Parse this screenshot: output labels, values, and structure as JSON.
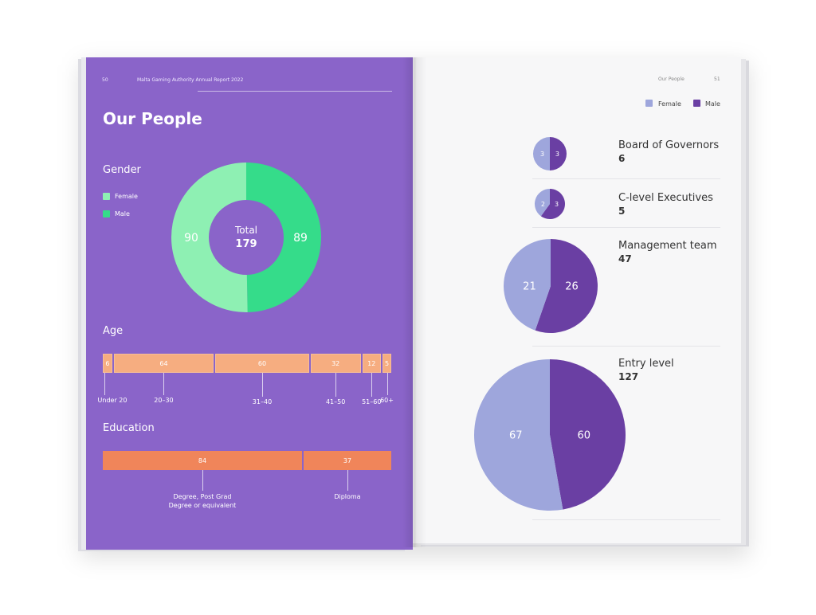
{
  "left_page": {
    "page_number": "50",
    "report_title": "Malta Gaming Authority Annual Report 2022",
    "title": "Our People",
    "gender": {
      "heading": "Gender",
      "legend": [
        {
          "label": "Female",
          "color": "#8ef0b3"
        },
        {
          "label": "Male",
          "color": "#35dc8a"
        }
      ],
      "female": "90",
      "male": "89",
      "total_label": "Total",
      "total_value": "179"
    },
    "age": {
      "heading": "Age",
      "color": "#f6ad80",
      "items": [
        {
          "value": "6",
          "label": "Under 20"
        },
        {
          "value": "64",
          "label": "20–30"
        },
        {
          "value": "60",
          "label": "31–40"
        },
        {
          "value": "32",
          "label": "41–50"
        },
        {
          "value": "12",
          "label": "51–60"
        },
        {
          "value": "5",
          "label": "60+"
        }
      ]
    },
    "education": {
      "heading": "Education",
      "color": "#f0855a",
      "items": [
        {
          "value": "84",
          "label_line1": "Degree, Post Grad",
          "label_line2": "Degree or equivalent"
        },
        {
          "value": "37",
          "label_line1": "Diploma"
        }
      ]
    }
  },
  "right_page": {
    "section_label": "Our People",
    "page_number": "51",
    "legend": [
      {
        "label": "Female",
        "color": "#9ea6dc"
      },
      {
        "label": "Male",
        "color": "#6a3fa3"
      }
    ],
    "groups": [
      {
        "label": "Board of Governors",
        "total": "6",
        "female": "3",
        "male": "3"
      },
      {
        "label": "C-level Executives",
        "total": "5",
        "female": "2",
        "male": "3"
      },
      {
        "label": "Management team",
        "total": "47",
        "female": "21",
        "male": "26"
      },
      {
        "label": "Entry level",
        "total": "127",
        "female": "67",
        "male": "60"
      }
    ]
  },
  "chart_data": [
    {
      "type": "pie",
      "title": "Gender",
      "categories": [
        "Female",
        "Male"
      ],
      "values": [
        90,
        89
      ]
    },
    {
      "type": "bar",
      "title": "Age",
      "categories": [
        "Under 20",
        "20–30",
        "31–40",
        "41–50",
        "51–60",
        "60+"
      ],
      "values": [
        6,
        64,
        60,
        32,
        12,
        5
      ]
    },
    {
      "type": "bar",
      "title": "Education",
      "categories": [
        "Degree, Post Grad Degree or equivalent",
        "Diploma"
      ],
      "values": [
        84,
        37
      ]
    },
    {
      "type": "pie",
      "title": "Board of Governors",
      "categories": [
        "Female",
        "Male"
      ],
      "values": [
        3,
        3
      ]
    },
    {
      "type": "pie",
      "title": "C-level Executives",
      "categories": [
        "Female",
        "Male"
      ],
      "values": [
        2,
        3
      ]
    },
    {
      "type": "pie",
      "title": "Management team",
      "categories": [
        "Female",
        "Male"
      ],
      "values": [
        21,
        26
      ]
    },
    {
      "type": "pie",
      "title": "Entry level",
      "categories": [
        "Female",
        "Male"
      ],
      "values": [
        67,
        60
      ]
    }
  ]
}
